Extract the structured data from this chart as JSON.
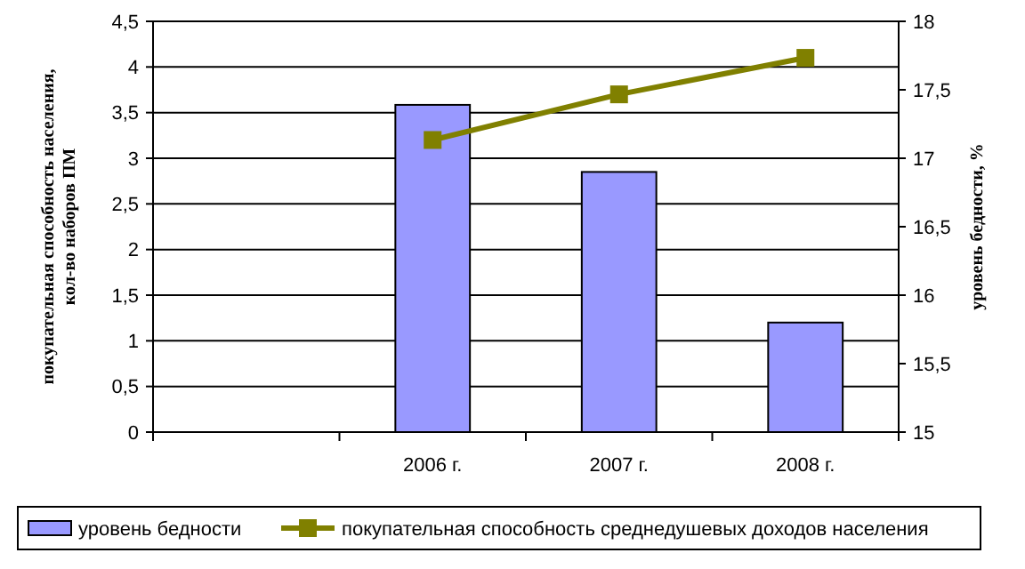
{
  "chart_data": {
    "type": "bar",
    "categories": [
      null,
      "2006 г.",
      "2007 г.",
      "2008 г."
    ],
    "ylabel": "покупательная способность населения,\nкол-во наборов ПМ",
    "y2label": "уровень бедности, %",
    "series": [
      {
        "name": "уровень бедности",
        "color": "#9999ff",
        "axis": "y2",
        "values": [
          null,
          17.39,
          16.9,
          15.8
        ]
      },
      {
        "name": "покупательная способность среднедушевых доходов населения",
        "type": "line",
        "color": "#808000",
        "marker": "square",
        "values": [
          null,
          3.2,
          3.7,
          4.1
        ]
      }
    ],
    "ylim": [
      0,
      4.5
    ],
    "yticks": [
      0,
      {
        "value": 0.5,
        "label": "0,5"
      },
      1,
      {
        "value": 1.5,
        "label": "1,5"
      },
      2,
      {
        "value": 2.5,
        "label": "2,5"
      },
      3,
      {
        "value": 3.5,
        "label": "3,5"
      },
      4,
      {
        "value": 4.5,
        "label": "4,5"
      }
    ],
    "y2lim": [
      15,
      18
    ],
    "y2ticks": [
      15,
      {
        "value": 15.5,
        "label": "15,5"
      },
      16,
      {
        "value": 16.5,
        "label": "16,5"
      },
      17,
      {
        "value": 17.5,
        "label": "17,5"
      },
      18
    ],
    "grid": "y",
    "legend": "bottom"
  }
}
